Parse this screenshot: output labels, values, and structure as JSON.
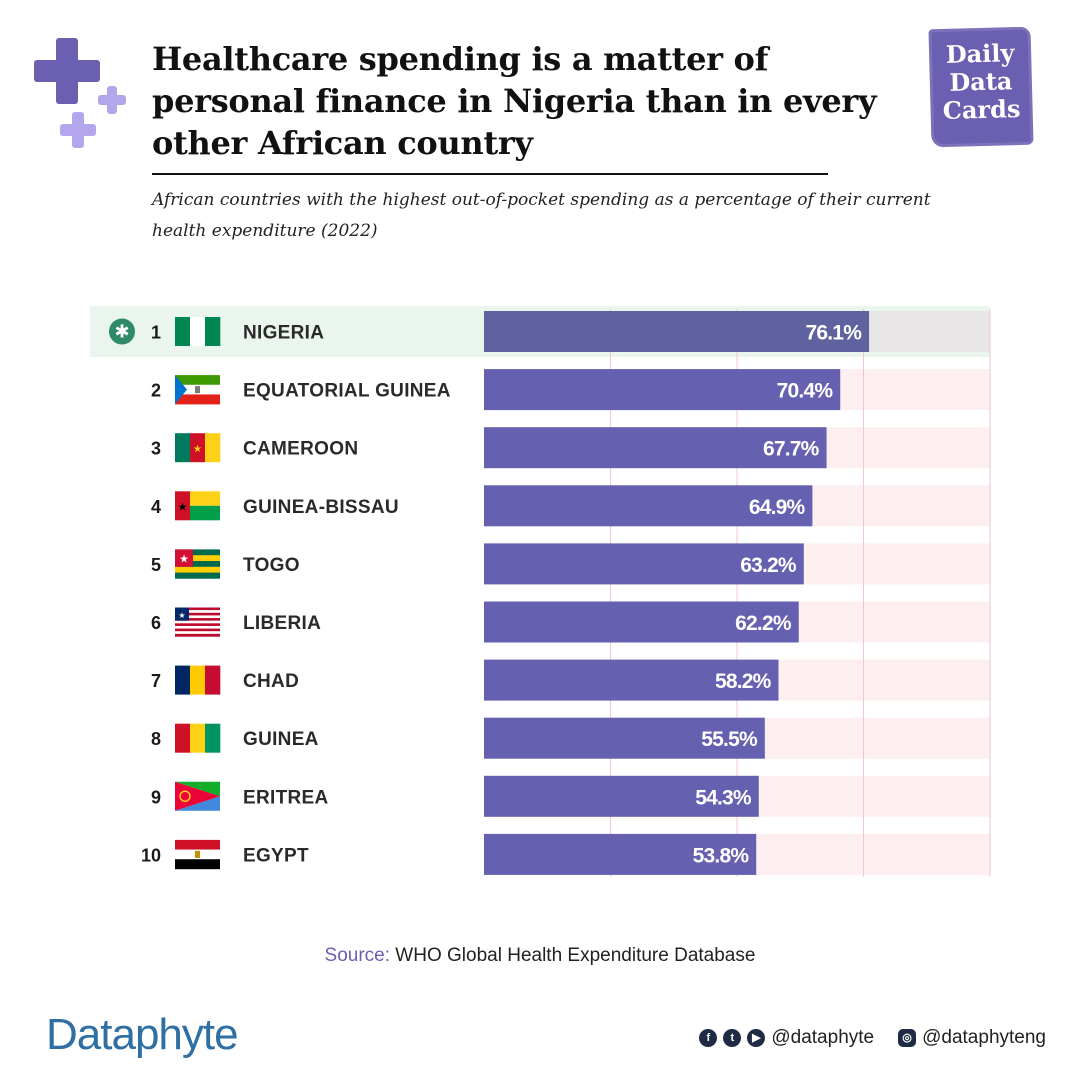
{
  "title": "Healthcare spending is a matter of personal finance in Nigeria than in every other African country",
  "subtitle": "African countries with the highest out-of-pocket spending as a percentage of their current health expenditure (2022)",
  "badge": [
    "Daily",
    "Data",
    "Cards"
  ],
  "colors": {
    "bar": "#6660b0",
    "bar_highlight": "#5f629f",
    "track": "#fdeef0",
    "track_highlight": "#e8e6e6",
    "row_highlight": "#eaf5ee",
    "accent": "#2f8a68"
  },
  "chart_data": {
    "type": "bar",
    "orientation": "horizontal",
    "xlim": [
      0,
      100
    ],
    "highlight": "NIGERIA",
    "rows": [
      {
        "rank": "1",
        "country": "NIGERIA",
        "value": 76.1,
        "label": "76.1%"
      },
      {
        "rank": "2",
        "country": "EQUATORIAL GUINEA",
        "value": 70.4,
        "label": "70.4%"
      },
      {
        "rank": "3",
        "country": "CAMEROON",
        "value": 67.7,
        "label": "67.7%"
      },
      {
        "rank": "4",
        "country": "GUINEA-BISSAU",
        "value": 64.9,
        "label": "64.9%"
      },
      {
        "rank": "5",
        "country": "TOGO",
        "value": 63.2,
        "label": "63.2%"
      },
      {
        "rank": "6",
        "country": "LIBERIA",
        "value": 62.2,
        "label": "62.2%"
      },
      {
        "rank": "7",
        "country": "CHAD",
        "value": 58.2,
        "label": "58.2%"
      },
      {
        "rank": "8",
        "country": "GUINEA",
        "value": 55.5,
        "label": "55.5%"
      },
      {
        "rank": "9",
        "country": "ERITREA",
        "value": 54.3,
        "label": "54.3%"
      },
      {
        "rank": "10",
        "country": "EGYPT",
        "value": 53.8,
        "label": "53.8%"
      }
    ]
  },
  "source": {
    "label": "Source:",
    "text": " WHO Global Health Expenditure Database"
  },
  "footer": {
    "brand": "Dataphyte",
    "handle_1": "@dataphyte",
    "handle_2": "@dataphyteng",
    "icons": [
      "facebook-icon",
      "twitter-icon",
      "youtube-icon",
      "instagram-icon"
    ]
  }
}
